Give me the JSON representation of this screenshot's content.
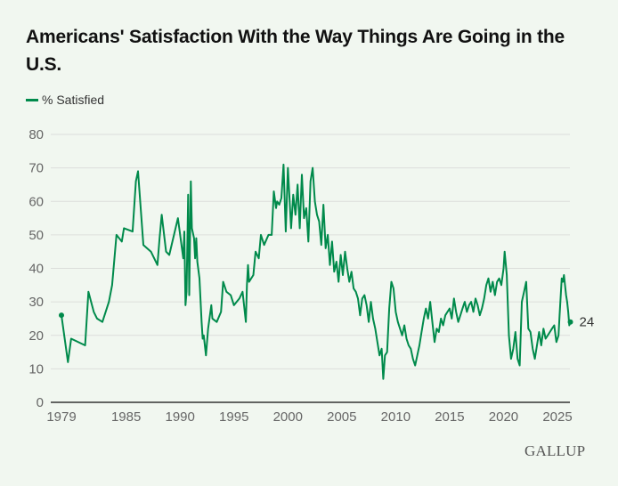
{
  "chart_data": {
    "type": "line",
    "title": "Americans' Satisfaction With the Way Things Are Going in the U.S.",
    "xlabel": "",
    "ylabel": "",
    "ylim": [
      0,
      80
    ],
    "xlim": [
      1979,
      2026.3
    ],
    "grid": true,
    "legend_position": "top-left",
    "yticks": [
      "0",
      "10",
      "20",
      "30",
      "40",
      "50",
      "60",
      "70",
      "80"
    ],
    "xticks": [
      {
        "value": 1979,
        "label": "1979"
      },
      {
        "value": 1985,
        "label": "1985"
      },
      {
        "value": 1990,
        "label": "1990"
      },
      {
        "value": 1995,
        "label": "1995"
      },
      {
        "value": 2000,
        "label": "2000"
      },
      {
        "value": 2005,
        "label": "2005"
      },
      {
        "value": 2010,
        "label": "2010"
      },
      {
        "value": 2015,
        "label": "2015"
      },
      {
        "value": 2020,
        "label": "2020"
      },
      {
        "value": 2025,
        "label": "2025"
      }
    ],
    "series": [
      {
        "name": "% Satisfied",
        "color": "#008a4b",
        "end_label": "24",
        "points": [
          [
            1979.0,
            26
          ],
          [
            1979.6,
            12
          ],
          [
            1979.9,
            19
          ],
          [
            1981.2,
            17
          ],
          [
            1981.5,
            33
          ],
          [
            1982.0,
            27
          ],
          [
            1982.3,
            25
          ],
          [
            1982.8,
            24
          ],
          [
            1983.4,
            30
          ],
          [
            1983.7,
            35
          ],
          [
            1984.1,
            50
          ],
          [
            1984.6,
            48
          ],
          [
            1984.8,
            52
          ],
          [
            1985.6,
            51
          ],
          [
            1985.9,
            66
          ],
          [
            1986.1,
            69
          ],
          [
            1986.6,
            47
          ],
          [
            1987.3,
            45
          ],
          [
            1987.9,
            41
          ],
          [
            1988.1,
            49
          ],
          [
            1988.3,
            56
          ],
          [
            1988.7,
            45
          ],
          [
            1989.0,
            44
          ],
          [
            1989.8,
            55
          ],
          [
            1990.3,
            43
          ],
          [
            1990.4,
            51
          ],
          [
            1990.5,
            29
          ],
          [
            1990.6,
            33
          ],
          [
            1990.75,
            62
          ],
          [
            1990.85,
            32
          ],
          [
            1991.0,
            66
          ],
          [
            1991.1,
            52
          ],
          [
            1991.3,
            49
          ],
          [
            1991.4,
            43
          ],
          [
            1991.5,
            49
          ],
          [
            1991.6,
            42
          ],
          [
            1991.8,
            37
          ],
          [
            1992.0,
            24
          ],
          [
            1992.1,
            19
          ],
          [
            1992.2,
            20
          ],
          [
            1992.4,
            14
          ],
          [
            1992.6,
            22
          ],
          [
            1992.9,
            29
          ],
          [
            1993.0,
            25
          ],
          [
            1993.4,
            24
          ],
          [
            1993.8,
            27
          ],
          [
            1994.0,
            36
          ],
          [
            1994.3,
            33
          ],
          [
            1994.7,
            32
          ],
          [
            1995.0,
            29
          ],
          [
            1995.5,
            31
          ],
          [
            1995.8,
            33
          ],
          [
            1996.1,
            24
          ],
          [
            1996.2,
            35
          ],
          [
            1996.3,
            41
          ],
          [
            1996.4,
            36
          ],
          [
            1996.8,
            38
          ],
          [
            1997.0,
            45
          ],
          [
            1997.3,
            43
          ],
          [
            1997.5,
            50
          ],
          [
            1997.8,
            47
          ],
          [
            1998.2,
            50
          ],
          [
            1998.5,
            50
          ],
          [
            1998.7,
            63
          ],
          [
            1998.9,
            58
          ],
          [
            1999.0,
            60
          ],
          [
            1999.2,
            59
          ],
          [
            1999.4,
            61
          ],
          [
            1999.6,
            71
          ],
          [
            1999.8,
            51
          ],
          [
            2000.0,
            70
          ],
          [
            2000.3,
            52
          ],
          [
            2000.5,
            62
          ],
          [
            2000.7,
            56
          ],
          [
            2000.9,
            65
          ],
          [
            2001.1,
            52
          ],
          [
            2001.3,
            68
          ],
          [
            2001.5,
            55
          ],
          [
            2001.7,
            58
          ],
          [
            2001.9,
            48
          ],
          [
            2002.1,
            66
          ],
          [
            2002.3,
            70
          ],
          [
            2002.5,
            60
          ],
          [
            2002.7,
            56
          ],
          [
            2002.9,
            54
          ],
          [
            2003.1,
            47
          ],
          [
            2003.3,
            59
          ],
          [
            2003.5,
            46
          ],
          [
            2003.7,
            50
          ],
          [
            2003.9,
            41
          ],
          [
            2004.1,
            48
          ],
          [
            2004.3,
            39
          ],
          [
            2004.5,
            42
          ],
          [
            2004.7,
            36
          ],
          [
            2004.9,
            44
          ],
          [
            2005.1,
            38
          ],
          [
            2005.3,
            45
          ],
          [
            2005.5,
            40
          ],
          [
            2005.7,
            36
          ],
          [
            2005.9,
            39
          ],
          [
            2006.1,
            34
          ],
          [
            2006.3,
            33
          ],
          [
            2006.5,
            31
          ],
          [
            2006.7,
            26
          ],
          [
            2006.9,
            31
          ],
          [
            2007.1,
            32
          ],
          [
            2007.3,
            29
          ],
          [
            2007.5,
            24
          ],
          [
            2007.7,
            30
          ],
          [
            2007.9,
            25
          ],
          [
            2008.1,
            22
          ],
          [
            2008.3,
            18
          ],
          [
            2008.5,
            14
          ],
          [
            2008.7,
            16
          ],
          [
            2008.85,
            7
          ],
          [
            2009.0,
            14
          ],
          [
            2009.2,
            15
          ],
          [
            2009.4,
            28
          ],
          [
            2009.6,
            36
          ],
          [
            2009.8,
            34
          ],
          [
            2010.0,
            27
          ],
          [
            2010.2,
            24
          ],
          [
            2010.4,
            22
          ],
          [
            2010.6,
            20
          ],
          [
            2010.8,
            23
          ],
          [
            2011.0,
            19
          ],
          [
            2011.2,
            17
          ],
          [
            2011.4,
            16
          ],
          [
            2011.6,
            13
          ],
          [
            2011.8,
            11
          ],
          [
            2012.0,
            14
          ],
          [
            2012.2,
            17
          ],
          [
            2012.4,
            21
          ],
          [
            2012.6,
            25
          ],
          [
            2012.8,
            28
          ],
          [
            2013.0,
            25
          ],
          [
            2013.2,
            30
          ],
          [
            2013.4,
            24
          ],
          [
            2013.6,
            18
          ],
          [
            2013.8,
            22
          ],
          [
            2014.0,
            21
          ],
          [
            2014.2,
            25
          ],
          [
            2014.4,
            23
          ],
          [
            2014.6,
            26
          ],
          [
            2014.8,
            27
          ],
          [
            2015.0,
            28
          ],
          [
            2015.2,
            25
          ],
          [
            2015.4,
            31
          ],
          [
            2015.6,
            27
          ],
          [
            2015.8,
            24
          ],
          [
            2016.0,
            26
          ],
          [
            2016.2,
            28
          ],
          [
            2016.4,
            30
          ],
          [
            2016.6,
            27
          ],
          [
            2016.8,
            29
          ],
          [
            2017.0,
            30
          ],
          [
            2017.2,
            27
          ],
          [
            2017.4,
            31
          ],
          [
            2017.6,
            29
          ],
          [
            2017.8,
            26
          ],
          [
            2018.0,
            28
          ],
          [
            2018.2,
            31
          ],
          [
            2018.4,
            35
          ],
          [
            2018.6,
            37
          ],
          [
            2018.8,
            33
          ],
          [
            2019.0,
            36
          ],
          [
            2019.2,
            32
          ],
          [
            2019.4,
            36
          ],
          [
            2019.6,
            37
          ],
          [
            2019.8,
            35
          ],
          [
            2020.0,
            40
          ],
          [
            2020.1,
            45
          ],
          [
            2020.3,
            38
          ],
          [
            2020.5,
            20
          ],
          [
            2020.7,
            13
          ],
          [
            2020.9,
            16
          ],
          [
            2021.1,
            21
          ],
          [
            2021.3,
            13
          ],
          [
            2021.5,
            11
          ],
          [
            2021.7,
            30
          ],
          [
            2021.9,
            33
          ],
          [
            2022.1,
            36
          ],
          [
            2022.3,
            22
          ],
          [
            2022.5,
            21
          ],
          [
            2022.7,
            16
          ],
          [
            2022.9,
            13
          ],
          [
            2023.1,
            17
          ],
          [
            2023.3,
            21
          ],
          [
            2023.5,
            17
          ],
          [
            2023.7,
            22
          ],
          [
            2023.9,
            19
          ],
          [
            2024.1,
            20
          ],
          [
            2024.3,
            21
          ],
          [
            2024.5,
            22
          ],
          [
            2024.7,
            23
          ],
          [
            2024.9,
            18
          ],
          [
            2025.1,
            20
          ],
          [
            2025.2,
            26
          ],
          [
            2025.4,
            37
          ],
          [
            2025.5,
            36
          ],
          [
            2025.6,
            38
          ],
          [
            2025.8,
            32
          ],
          [
            2025.9,
            30
          ],
          [
            2026.0,
            27
          ],
          [
            2026.1,
            23
          ],
          [
            2026.2,
            24
          ]
        ]
      }
    ]
  },
  "legend": {
    "label": "% Satisfied"
  },
  "source_logo": "GALLUP"
}
